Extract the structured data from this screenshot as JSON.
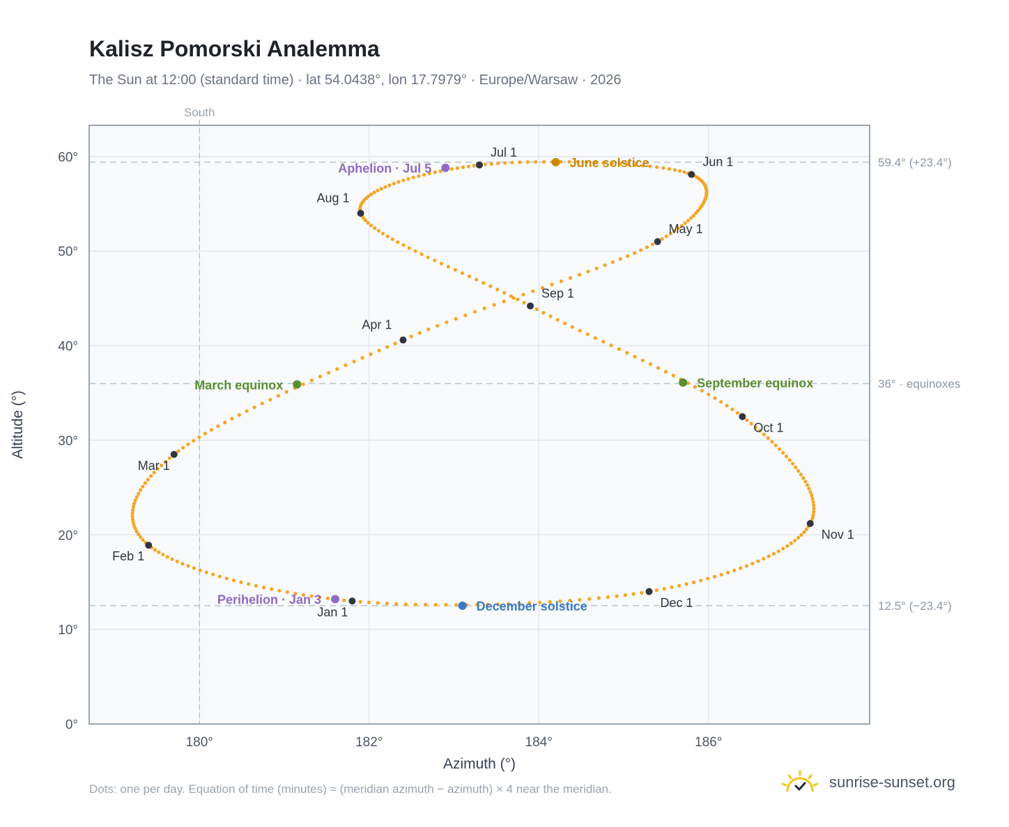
{
  "title": "Kalisz Pomorski Analemma",
  "subtitle": "The Sun at 12:00 (standard time) · lat 54.0438°, lon 17.7979° · Europe/Warsaw · 2026",
  "footnote": "Dots: one per day. Equation of time (minutes) ≈ (meridian azimuth − azimuth) × 4 near the meridian.",
  "brand": {
    "name": "sunrise-sunset.org",
    "icon": "sun-logo-icon",
    "color": "#f5c518"
  },
  "chart_data": {
    "type": "scatter",
    "title": "Kalisz Pomorski Analemma",
    "xlabel": "Azimuth (°)",
    "ylabel": "Altitude (°)",
    "xlim": [
      178.7,
      187.9
    ],
    "ylim": [
      0,
      63.3
    ],
    "xticks": [
      180,
      182,
      184,
      186
    ],
    "xtick_labels": [
      "180°",
      "182°",
      "184°",
      "186°"
    ],
    "yticks": [
      0,
      10,
      20,
      30,
      40,
      50,
      60
    ],
    "ytick_labels": [
      "0°",
      "10°",
      "20°",
      "30°",
      "40°",
      "50°",
      "60°"
    ],
    "grid": true,
    "colors": {
      "path": "#f5a623",
      "month": "#2f3640",
      "solstice_june": "#c98a0a",
      "solstice_dec": "#3a7bc8",
      "equinox": "#5a8f2f",
      "apsis": "#8e6bbf",
      "refline": "#b9c3cc",
      "plot_bg": "#f8fafc",
      "grid": "#e3e8ee",
      "frame": "#9aa5b1"
    },
    "south_line": {
      "x": 180,
      "label": "South"
    },
    "reference_lines": [
      {
        "y": 59.4,
        "label": "59.4° (+23.4°)"
      },
      {
        "y": 36,
        "label": "36° · equinoxes"
      },
      {
        "y": 12.5,
        "label": "12.5° (−23.4°)"
      }
    ],
    "month_markers": [
      {
        "label": "Jan 1",
        "az": 181.8,
        "alt": 13.0,
        "pos": "below-left"
      },
      {
        "label": "Feb 1",
        "az": 179.4,
        "alt": 18.9,
        "pos": "below-left"
      },
      {
        "label": "Mar 1",
        "az": 179.7,
        "alt": 28.5,
        "pos": "below-left"
      },
      {
        "label": "Apr 1",
        "az": 182.4,
        "alt": 40.6,
        "pos": "above-left"
      },
      {
        "label": "May 1",
        "az": 185.4,
        "alt": 51.0,
        "pos": "above-right"
      },
      {
        "label": "Jun 1",
        "az": 185.8,
        "alt": 58.1,
        "pos": "above-right"
      },
      {
        "label": "Jul 1",
        "az": 183.3,
        "alt": 59.1,
        "pos": "above-right"
      },
      {
        "label": "Aug 1",
        "az": 181.9,
        "alt": 54.0,
        "pos": "above-left"
      },
      {
        "label": "Sep 1",
        "az": 183.9,
        "alt": 44.2,
        "pos": "above-right"
      },
      {
        "label": "Oct 1",
        "az": 186.4,
        "alt": 32.5,
        "pos": "below-right"
      },
      {
        "label": "Nov 1",
        "az": 187.2,
        "alt": 21.2,
        "pos": "below-right"
      },
      {
        "label": "Dec 1",
        "az": 185.3,
        "alt": 14.0,
        "pos": "below-right"
      }
    ],
    "events": [
      {
        "label": "June solstice",
        "az": 184.2,
        "alt": 59.4,
        "color": "#c98a0a",
        "side": "right"
      },
      {
        "label": "December solstice",
        "az": 183.1,
        "alt": 12.5,
        "color": "#3a7bc8",
        "side": "right"
      },
      {
        "label": "March equinox",
        "az": 181.15,
        "alt": 35.9,
        "color": "#5a8f2f",
        "side": "left"
      },
      {
        "label": "September equinox",
        "az": 185.7,
        "alt": 36.1,
        "color": "#5a8f2f",
        "side": "right"
      },
      {
        "label": "Aphelion · Jul 5",
        "az": 182.9,
        "alt": 58.8,
        "color": "#8e6bbf",
        "side": "left"
      },
      {
        "label": "Perihelion · Jan 3",
        "az": 181.6,
        "alt": 13.2,
        "color": "#8e6bbf",
        "side": "left"
      }
    ]
  }
}
